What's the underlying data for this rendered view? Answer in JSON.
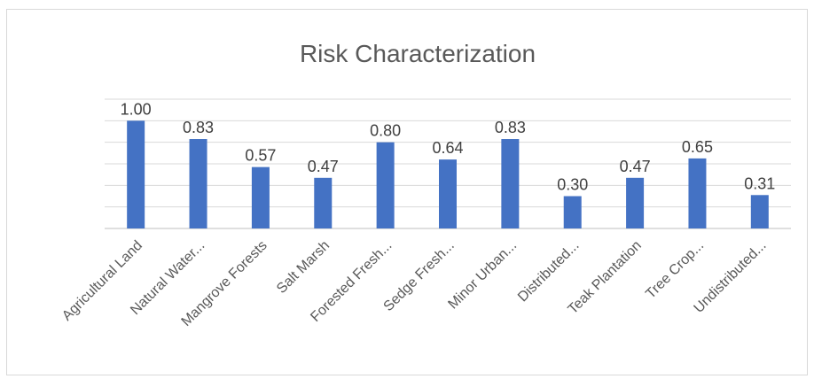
{
  "chart_data": {
    "type": "bar",
    "title": "Risk Characterization",
    "xlabel": "",
    "ylabel": "",
    "ylim": [
      0,
      1.2
    ],
    "grid": true,
    "legend": "none",
    "categories": [
      "Agricultural Land",
      "Natural Water...",
      "Mangrove Forests",
      "Salt Marsh",
      "Forested Fresh...",
      "Sedge Fresh...",
      "Minor Urban...",
      "Distributed...",
      "Teak Plantation",
      "Tree Crop...",
      "Undistributed..."
    ],
    "values": [
      1.0,
      0.83,
      0.57,
      0.47,
      0.8,
      0.64,
      0.83,
      0.3,
      0.47,
      0.65,
      0.31
    ],
    "data_labels": [
      "1.00",
      "0.83",
      "0.57",
      "0.47",
      "0.80",
      "0.64",
      "0.83",
      "0.30",
      "0.47",
      "0.65",
      "0.31"
    ],
    "colors": {
      "bar": "#4472c4",
      "grid": "#d9d9d9",
      "text": "#404040"
    }
  }
}
